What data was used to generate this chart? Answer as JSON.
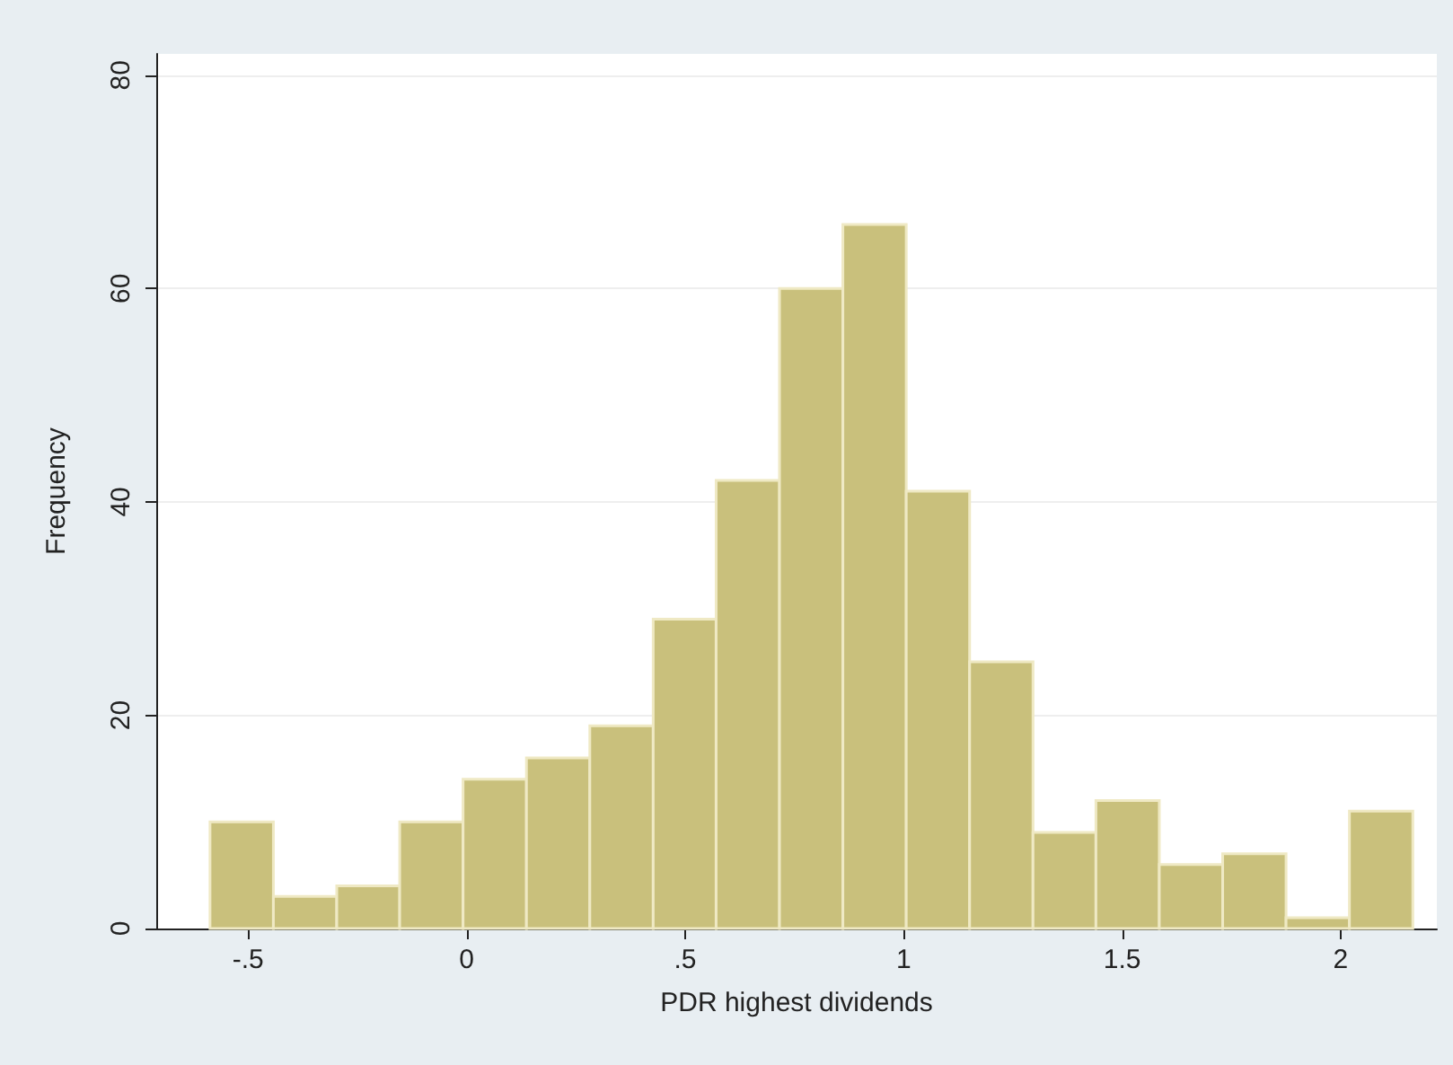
{
  "chart_data": {
    "type": "histogram",
    "xlabel": "PDR highest dividends",
    "ylabel": "Frequency",
    "bins": [
      -0.587,
      -0.442,
      -0.297,
      -0.153,
      -0.008,
      0.137,
      0.282,
      0.427,
      0.571,
      0.716,
      0.861,
      1.006,
      1.151,
      1.296,
      1.44,
      1.585,
      1.73,
      1.875,
      2.02,
      2.165
    ],
    "values": [
      10,
      3,
      4,
      10,
      14,
      16,
      19,
      29,
      42,
      60,
      66,
      41,
      25,
      9,
      12,
      6,
      7,
      1,
      11
    ],
    "color": "#c9c07c",
    "xlim": [
      -0.71,
      2.22
    ],
    "xticks": [
      {
        "value": -0.5,
        "label": "-.5"
      },
      0,
      {
        "value": 0.5,
        "label": ".5"
      },
      1,
      1.5,
      2
    ],
    "ylim": [
      0,
      82
    ],
    "yticks": [
      0,
      20,
      40,
      60,
      80
    ],
    "grid": "y"
  }
}
